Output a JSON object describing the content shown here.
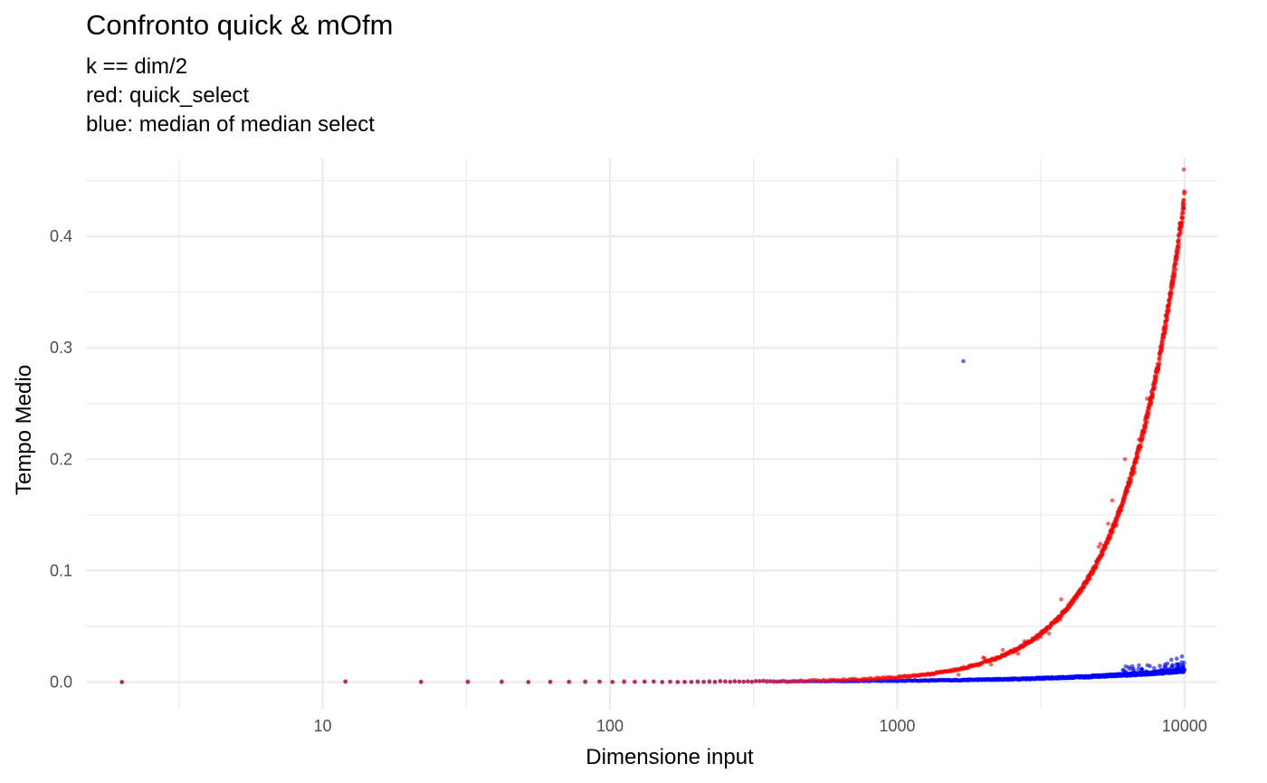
{
  "chart_data": {
    "type": "scatter",
    "title": "Confronto quick & mOfm",
    "subtitle_lines": [
      "k == dim/2",
      "red: quick_select",
      "blue: median of median select"
    ],
    "xlabel": "Dimensione input",
    "ylabel": "Tempo Medio",
    "x_scale": "log10",
    "xlim": [
      1.5,
      13000
    ],
    "ylim": [
      -0.024,
      0.47
    ],
    "x_ticks": [
      10,
      100,
      1000,
      10000
    ],
    "x_tick_labels": [
      "10",
      "100",
      "1000",
      "10000"
    ],
    "y_ticks": [
      0.0,
      0.1,
      0.2,
      0.3,
      0.4
    ],
    "y_tick_labels": [
      "0.0",
      "0.1",
      "0.2",
      "0.3",
      "0.4"
    ],
    "grid": true,
    "legend": "none",
    "series": [
      {
        "color": "#ff0000",
        "opacity": 0.6,
        "curve": "quadratic",
        "x_range": [
          2,
          10000
        ],
        "x_step": 10,
        "approx_y_at": {
          "2": 0.0,
          "1000": 0.0045,
          "2000": 0.018,
          "3000": 0.039,
          "5000": 0.11,
          "7000": 0.215,
          "9000": 0.355,
          "10000": 0.435
        },
        "outliers": [
          {
            "x": 9950,
            "y": 0.46
          },
          {
            "x": 5600,
            "y": 0.163
          },
          {
            "x": 6200,
            "y": 0.2
          }
        ]
      },
      {
        "color": "#0000ff",
        "opacity": 0.6,
        "curve": "linear",
        "x_range": [
          2,
          10000
        ],
        "x_step": 10,
        "approx_y_at": {
          "2": 0.0,
          "1000": 0.001,
          "5000": 0.005,
          "10000": 0.01
        },
        "outliers": [
          {
            "x": 1700,
            "y": 0.288
          },
          {
            "x": 9800,
            "y": 0.023
          },
          {
            "x": 9400,
            "y": 0.021
          },
          {
            "x": 9000,
            "y": 0.02
          }
        ]
      }
    ]
  }
}
